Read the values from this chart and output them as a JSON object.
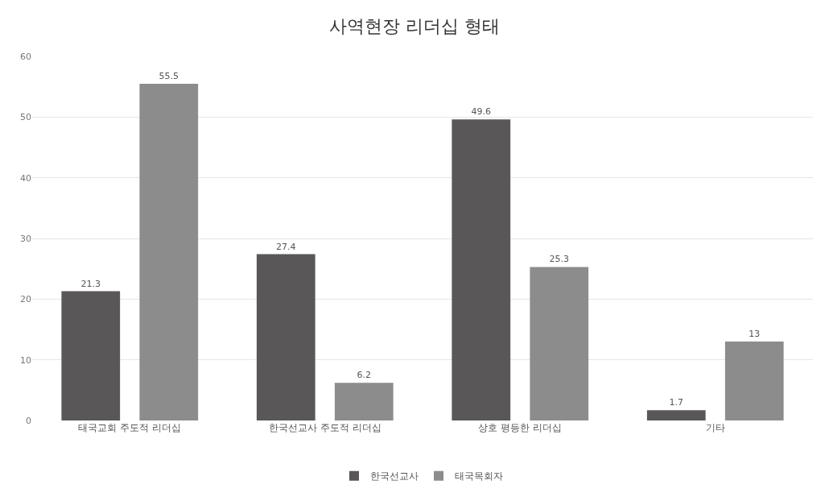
{
  "chart_data": {
    "type": "bar",
    "title": "사역현장 리더십 형태",
    "categories": [
      "태국교회 주도적 리더십",
      "한국선교사 주도적 리더십",
      "상호 평등한 리더십",
      "기타"
    ],
    "series": [
      {
        "name": "한국선교사",
        "color": "#595757",
        "values": [
          21.3,
          27.4,
          49.6,
          1.7
        ]
      },
      {
        "name": "태국목회자",
        "color": "#8c8c8c",
        "values": [
          55.5,
          6.2,
          25.3,
          13
        ]
      }
    ],
    "ylim": [
      0,
      60
    ],
    "yticks": [
      0,
      10,
      20,
      30,
      40,
      50,
      60
    ],
    "grid": "y",
    "legend": "bottom",
    "data_labels": true
  }
}
